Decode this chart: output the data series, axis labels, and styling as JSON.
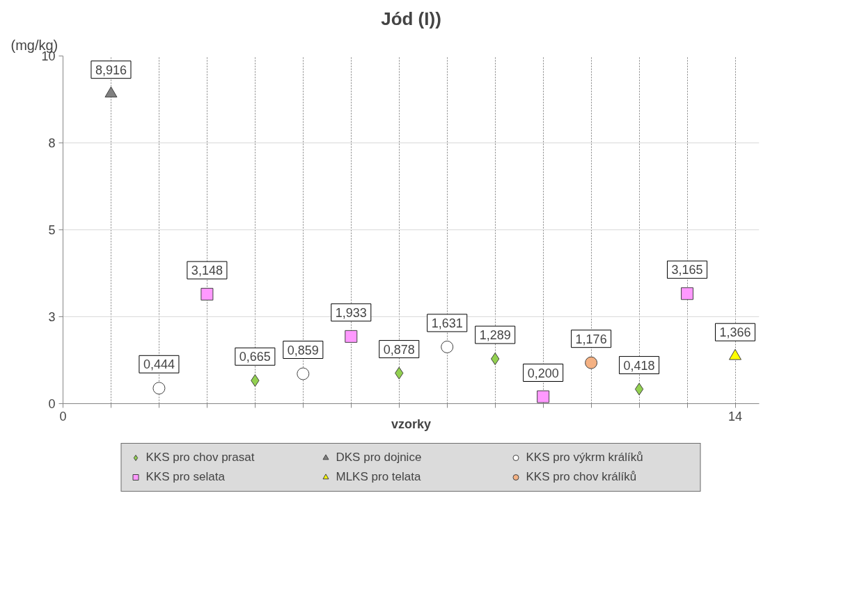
{
  "chart_data": {
    "type": "scatter",
    "title": "Jód (I))",
    "ylabel": "(mg/kg)",
    "xlabel": "vzorky",
    "xlim": [
      0,
      14.5
    ],
    "xticks": [
      0,
      {
        "value": 1,
        "label": null
      },
      {
        "value": 2,
        "label": null
      },
      {
        "value": 3,
        "label": null
      },
      {
        "value": 4,
        "label": null
      },
      {
        "value": 5,
        "label": null
      },
      {
        "value": 6,
        "label": null
      },
      {
        "value": 7,
        "label": null
      },
      {
        "value": 8,
        "label": null
      },
      {
        "value": 9,
        "label": null
      },
      {
        "value": 10,
        "label": null
      },
      {
        "value": 11,
        "label": null
      },
      {
        "value": 12,
        "label": null
      },
      {
        "value": 13,
        "label": null
      },
      14
    ],
    "ylim": [
      0,
      10
    ],
    "yticks": [
      0,
      {
        "value": 2.5,
        "label": "3"
      },
      5,
      {
        "value": 7.5,
        "label": "8"
      },
      10
    ],
    "grid": true,
    "legend": "bottom",
    "series": [
      {
        "name": "KKS pro chov prasat",
        "color": "#92d050",
        "marker": "diamond",
        "x": [
          4,
          7,
          9,
          12
        ],
        "values": [
          0.665,
          0.878,
          1.289,
          0.418
        ],
        "value_labels": [
          "0,665",
          "0,878",
          "1,289",
          "0,418"
        ]
      },
      {
        "name": "KKS pro selata",
        "color": "#ff99ff",
        "marker": "square",
        "x": [
          3,
          6,
          10,
          13
        ],
        "values": [
          3.148,
          1.933,
          0.2,
          3.165
        ],
        "value_labels": [
          "3,148",
          "1,933",
          "0,200",
          "3,165"
        ]
      },
      {
        "name": "DKS pro dojnice",
        "color": "#808080",
        "marker": "triangle",
        "x": [
          1
        ],
        "values": [
          8.916
        ],
        "value_labels": [
          "8,916"
        ]
      },
      {
        "name": "MLKS pro telata",
        "color": "#ffff00",
        "marker": "triangle",
        "x": [
          14
        ],
        "values": [
          1.366
        ],
        "value_labels": [
          "1,366"
        ]
      },
      {
        "name": "KKS pro výkrm králíků",
        "color": "#ffffff",
        "marker": "circle",
        "x": [
          2,
          5,
          8
        ],
        "values": [
          0.444,
          0.859,
          1.631
        ],
        "value_labels": [
          "0,444",
          "0,859",
          "1,631"
        ]
      },
      {
        "name": "KKS pro chov králíků",
        "color": "#f4b183",
        "marker": "circle",
        "x": [
          11
        ],
        "values": [
          1.176
        ],
        "value_labels": [
          "1,176"
        ]
      }
    ]
  }
}
